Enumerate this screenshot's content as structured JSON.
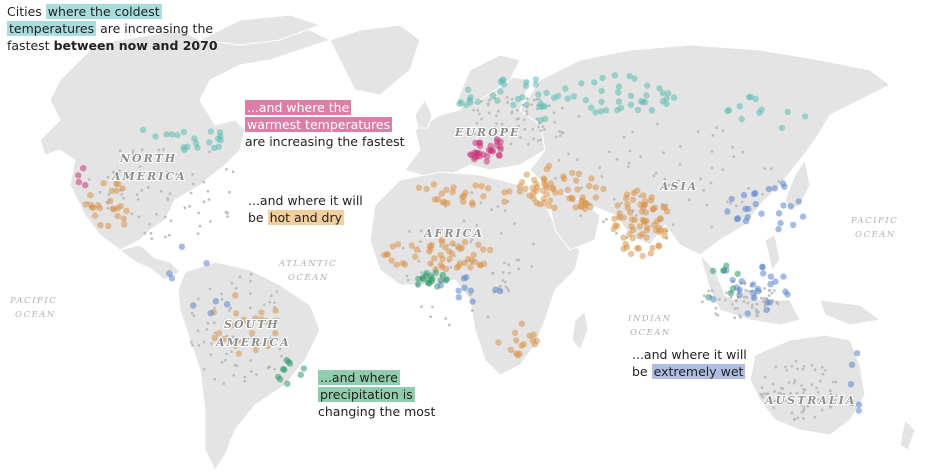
{
  "annotations": {
    "coldest": {
      "pre": "Cities ",
      "hl1": "where the coldest",
      "hl2": "temperatures",
      "post": " are increasing the",
      "line3_pre": "fastest ",
      "bold": "between now and 2070"
    },
    "warmest": {
      "hl1": "...and where the",
      "hl2": "warmest temperatures",
      "post": "are increasing the fastest"
    },
    "hot_dry": {
      "line1": "...and where it will",
      "pre": "be ",
      "hl": "hot and dry"
    },
    "precip": {
      "hl1": "...and where",
      "hl2": "precipitation is",
      "post": "changing the most"
    },
    "wet": {
      "line1": "...and where it will",
      "pre": "be ",
      "hl": "extremely wet"
    }
  },
  "labels": {
    "north_america_1": "NORTH",
    "north_america_2": "AMERICA",
    "south_america_1": "SOUTH",
    "south_america_2": "AMERICA",
    "europe": "EUROPE",
    "africa": "AFRICA",
    "asia": "ASIA",
    "australia": "AUSTRALIA",
    "atlantic_1": "ATLANTIC",
    "atlantic_2": "OCEAN",
    "pacific_w_1": "PACIFIC",
    "pacific_w_2": "OCEAN",
    "pacific_e_1": "PACIFIC",
    "pacific_e_2": "OCEAN",
    "indian_1": "INDIAN",
    "indian_2": "OCEAN"
  },
  "colors": {
    "land": "#e4e4e4",
    "city_grey": "#b9b9b9",
    "coldest": "#5cbcb4",
    "warmest": "#c8357a",
    "hot_dry": "#d9944a",
    "precipitation": "#2f9a6a",
    "wet": "#5a84cc"
  },
  "city_clusters": [
    {
      "category": "coldest",
      "region": "Northern Europe & Russia",
      "count": 70
    },
    {
      "category": "coldest",
      "region": "Canada & Northeast US",
      "count": 20
    },
    {
      "category": "coldest",
      "region": "Northeast Asia",
      "count": 12
    },
    {
      "category": "warmest",
      "region": "Balkans & Eastern Europe",
      "count": 30
    },
    {
      "category": "warmest",
      "region": "US West Coast",
      "count": 4
    },
    {
      "category": "hot_dry",
      "region": "Middle East",
      "count": 60
    },
    {
      "category": "hot_dry",
      "region": "India & Pakistan",
      "count": 70
    },
    {
      "category": "hot_dry",
      "region": "Sahel & West Africa",
      "count": 50
    },
    {
      "category": "hot_dry",
      "region": "North Africa",
      "count": 25
    },
    {
      "category": "hot_dry",
      "region": "Mexico & Southwest US",
      "count": 25
    },
    {
      "category": "hot_dry",
      "region": "Southern Africa",
      "count": 15
    },
    {
      "category": "hot_dry",
      "region": "South America",
      "count": 20
    },
    {
      "category": "precipitation",
      "region": "Nigeria / Gulf of Guinea",
      "count": 18
    },
    {
      "category": "precipitation",
      "region": "Eastern Brazil",
      "count": 10
    },
    {
      "category": "precipitation",
      "region": "Southeast Asia",
      "count": 8
    },
    {
      "category": "wet",
      "region": "East Asia & Japan",
      "count": 25
    },
    {
      "category": "wet",
      "region": "Southeast Asia & Indonesia",
      "count": 25
    },
    {
      "category": "wet",
      "region": "West & Central Africa",
      "count": 10
    },
    {
      "category": "wet",
      "region": "Eastern Australia",
      "count": 6
    },
    {
      "category": "wet",
      "region": "Latin America",
      "count": 8
    }
  ]
}
